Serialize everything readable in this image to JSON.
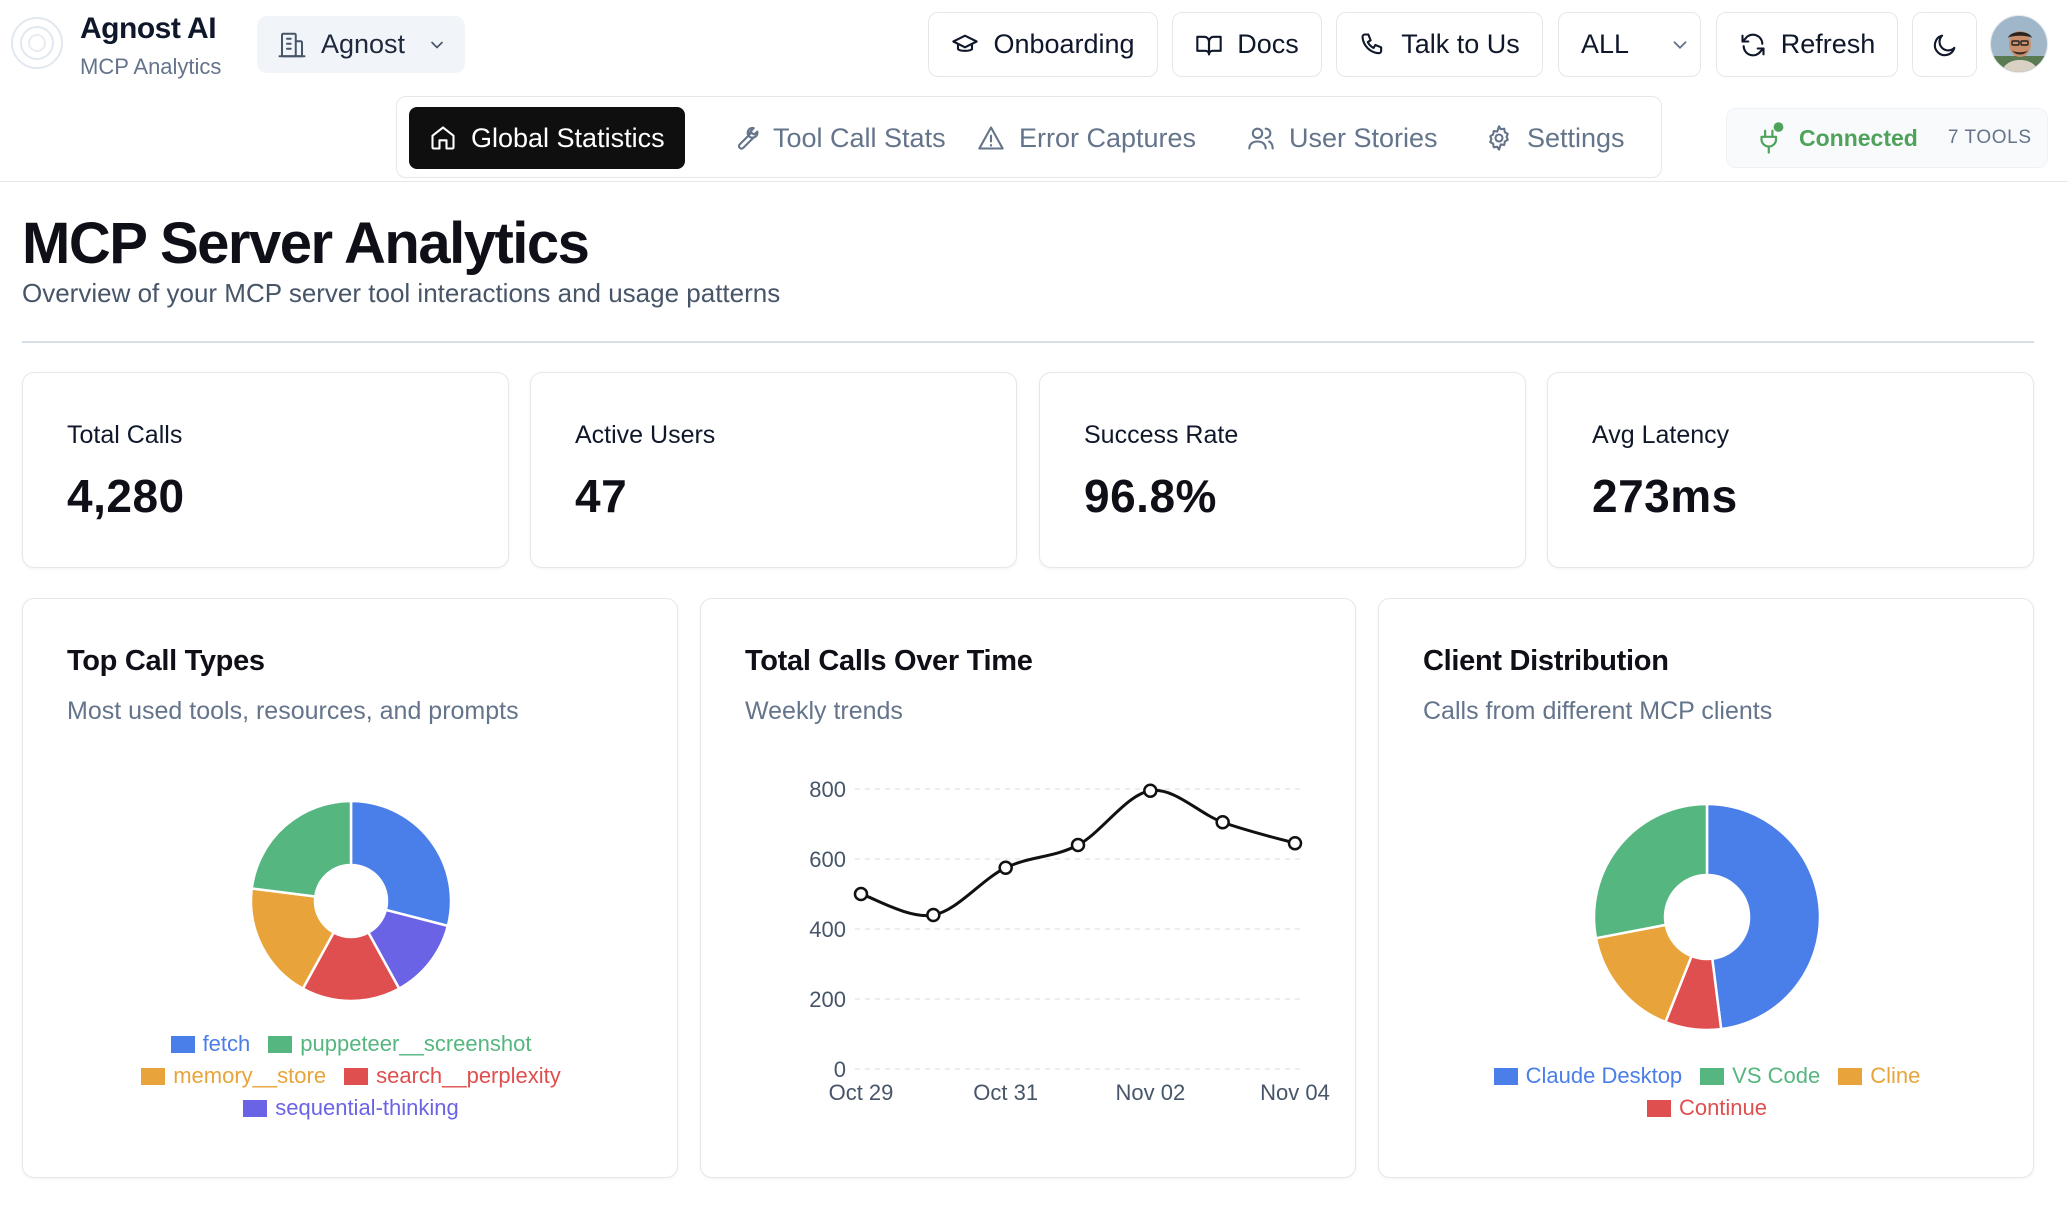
{
  "brand": {
    "title": "Agnost AI",
    "subtitle": "MCP Analytics"
  },
  "org": {
    "label": "Agnost"
  },
  "top_buttons": {
    "onboarding": "Onboarding",
    "docs": "Docs",
    "talk": "Talk to Us",
    "filter": "ALL",
    "refresh": "Refresh"
  },
  "nav": {
    "tabs": [
      {
        "label": "Global Statistics",
        "icon": "home-icon",
        "active": true
      },
      {
        "label": "Tool Call Stats",
        "icon": "wrench-icon",
        "active": false
      },
      {
        "label": "Error Captures",
        "icon": "warning-icon",
        "active": false
      },
      {
        "label": "User Stories",
        "icon": "users-icon",
        "active": false
      },
      {
        "label": "Settings",
        "icon": "gear-icon",
        "active": false
      }
    ]
  },
  "connection": {
    "status": "Connected",
    "tools": "7 TOOLS",
    "color": "#4ea25a"
  },
  "page": {
    "title": "MCP Server Analytics",
    "subtitle": "Overview of your MCP server tool interactions and usage patterns"
  },
  "stats": [
    {
      "label": "Total Calls",
      "value": "4,280"
    },
    {
      "label": "Active Users",
      "value": "47"
    },
    {
      "label": "Success Rate",
      "value": "96.8%"
    },
    {
      "label": "Avg Latency",
      "value": "273ms"
    }
  ],
  "chart_data": [
    {
      "type": "pie",
      "title": "Top Call Types",
      "subtitle": "Most used tools, resources, and prompts",
      "donut": true,
      "legend": "bottom",
      "slices": [
        {
          "label": "fetch",
          "value": 29,
          "color": "#4a7ee8"
        },
        {
          "label": "sequential-thinking",
          "value": 13,
          "color": "#6b63e6"
        },
        {
          "label": "search__perplexity",
          "value": 16,
          "color": "#e04f4f"
        },
        {
          "label": "memory__store",
          "value": 19,
          "color": "#e8a43a"
        },
        {
          "label": "puppeteer__screenshot",
          "value": 23,
          "color": "#55b67f"
        }
      ],
      "legend_order": [
        "fetch",
        "puppeteer__screenshot",
        "memory__store",
        "search__perplexity",
        "sequential-thinking"
      ]
    },
    {
      "type": "line",
      "title": "Total Calls Over Time",
      "subtitle": "Weekly trends",
      "x": [
        "Oct 29",
        "Oct 30",
        "Oct 31",
        "Nov 01",
        "Nov 02",
        "Nov 03",
        "Nov 04"
      ],
      "x_tick_labels": [
        "Oct 29",
        "Oct 31",
        "Nov 02",
        "Nov 04"
      ],
      "values": [
        500,
        440,
        575,
        640,
        795,
        705,
        645
      ],
      "ylim": [
        0,
        800
      ],
      "y_ticks": [
        0,
        200,
        400,
        600,
        800
      ],
      "grid": true,
      "color": "#111111"
    },
    {
      "type": "pie",
      "title": "Client Distribution",
      "subtitle": "Calls from different MCP clients",
      "donut": true,
      "legend": "bottom",
      "slices": [
        {
          "label": "Claude Desktop",
          "value": 48,
          "color": "#4a7ee8"
        },
        {
          "label": "Continue",
          "value": 8,
          "color": "#e04f4f"
        },
        {
          "label": "Cline",
          "value": 16,
          "color": "#e8a43a"
        },
        {
          "label": "VS Code",
          "value": 28,
          "color": "#55b67f"
        }
      ],
      "legend_order": [
        "Claude Desktop",
        "VS Code",
        "Cline",
        "Continue"
      ]
    }
  ]
}
